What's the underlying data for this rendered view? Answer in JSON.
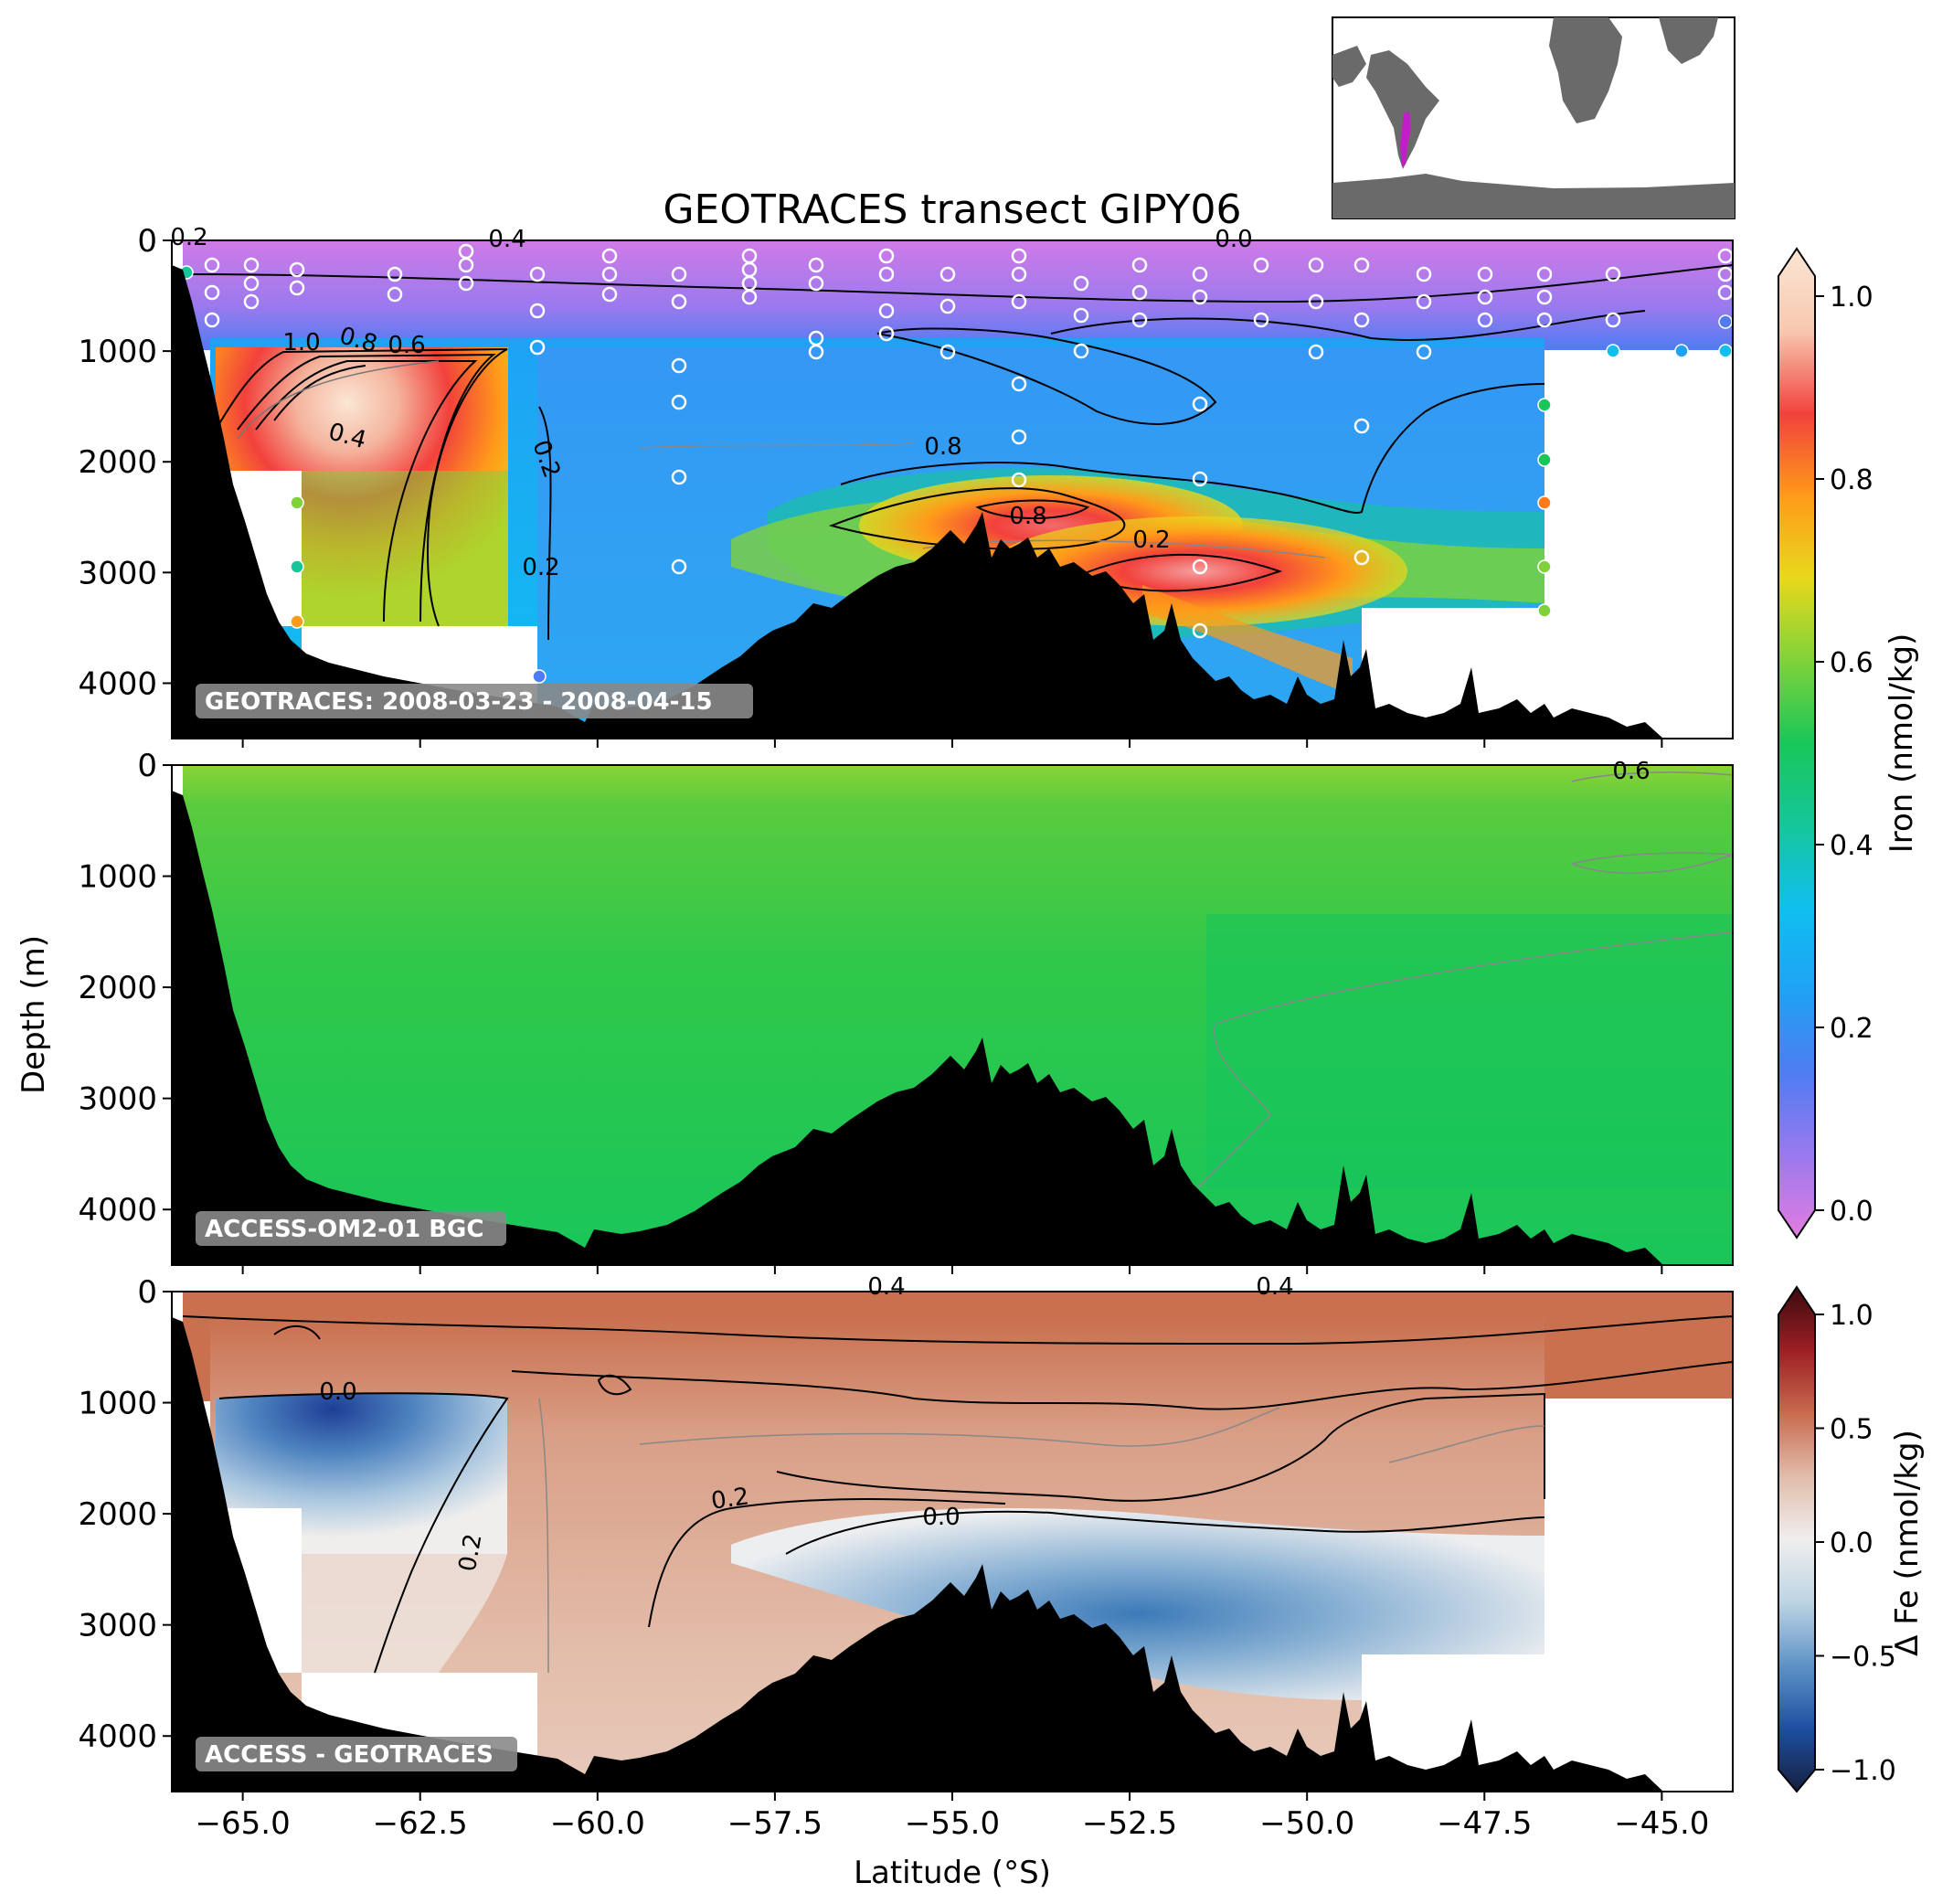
{
  "chart_data": {
    "type": "heatmap",
    "title": "GEOTRACES transect GIPY06",
    "xlabel": "Latitude (°S)",
    "ylabel": "Depth (m)",
    "xlim": [
      -66.0,
      -44.0
    ],
    "ylim": [
      4500,
      0
    ],
    "x_ticks": [
      "−65.0",
      "−62.5",
      "−60.0",
      "−57.5",
      "−55.0",
      "−52.5",
      "−50.0",
      "−47.5",
      "−45.0"
    ],
    "x_tick_values": [
      -65.0,
      -62.5,
      -60.0,
      -57.5,
      -55.0,
      -52.5,
      -50.0,
      -47.5,
      -45.0
    ],
    "y_ticks": [
      "0",
      "1000",
      "2000",
      "3000",
      "4000"
    ],
    "y_tick_values": [
      0,
      1000,
      2000,
      3000,
      4000
    ],
    "panels": [
      {
        "tag": "GEOTRACES:  2008-03-23 - 2008-04-15",
        "colorbar": "iron",
        "contour_labels": [
          "0.2",
          "0.4",
          "0.6",
          "0.8",
          "0.4",
          "0.8",
          "0.8",
          "0.2",
          "0.2",
          "0.2",
          "1.0",
          "0.0"
        ]
      },
      {
        "tag": "ACCESS-OM2-01 BGC",
        "colorbar": "iron",
        "contour_labels": [
          "0.6"
        ]
      },
      {
        "tag": "ACCESS - GEOTRACES",
        "colorbar": "delta",
        "contour_labels": [
          "0.0",
          "0.2",
          "0.0",
          "0.2",
          "0.4",
          "0.4"
        ]
      }
    ],
    "colorbars": {
      "iron": {
        "label": "Iron (nmol/kg)",
        "range": [
          0.0,
          1.0
        ],
        "ticks": [
          "0.0",
          "0.2",
          "0.4",
          "0.6",
          "0.8",
          "1.0"
        ],
        "tick_values": [
          0.0,
          0.2,
          0.4,
          0.6,
          0.8,
          1.0
        ],
        "colors": [
          "#e27ce0",
          "#9b79ee",
          "#4f7cf2",
          "#1fa2f4",
          "#10bff0",
          "#16c69a",
          "#19c65a",
          "#7fd23a",
          "#e8d81c",
          "#ff9a1a",
          "#f2413c",
          "#f7c8b0",
          "#fbe6d4"
        ]
      },
      "delta": {
        "label": "Δ Fe (nmol/kg)",
        "range": [
          -1.0,
          1.0
        ],
        "ticks": [
          "−1.0",
          "−0.5",
          "0.0",
          "0.5",
          "1.0"
        ],
        "tick_values": [
          -1.0,
          -0.5,
          0.0,
          0.5,
          1.0
        ],
        "colors": [
          "#16203f",
          "#1d4fa2",
          "#5e93c6",
          "#bdd4e4",
          "#f0eeed",
          "#e1bcaa",
          "#c96a4e",
          "#9c1f24",
          "#3b0a0f"
        ]
      }
    },
    "inset_map": {
      "land_color": "#6a6a6a",
      "transect_color": "#c21ec8"
    }
  }
}
